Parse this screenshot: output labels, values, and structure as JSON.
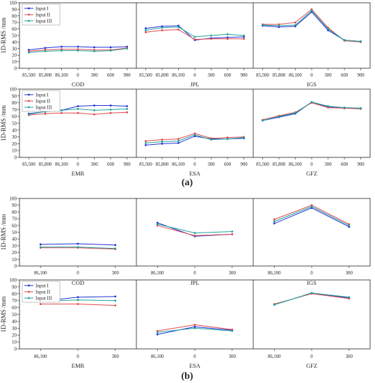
{
  "figure": {
    "label_a": "(a)",
    "label_b": "(b)"
  },
  "colors": {
    "input1": "#1f2fd6",
    "input2": "#e0474c",
    "input3": "#1fa39a",
    "axis": "#222222",
    "grid": "#bfbfbf"
  },
  "chart_data": [
    {
      "type": "line",
      "panel": "a",
      "ylabel": "1D-RMS /mm",
      "ylim": [
        0,
        100
      ],
      "yticks": [
        0,
        10,
        20,
        30,
        40,
        50,
        60,
        70,
        80,
        90,
        100
      ],
      "legend": [
        "Input I",
        "Input II",
        "Input III"
      ],
      "legend_position": "top-left",
      "x": [
        "85,500",
        "85,800",
        "86,100",
        "0",
        "300",
        "600",
        "900"
      ],
      "subplots": [
        {
          "label": "COD",
          "series": [
            {
              "name": "Input I",
              "values": [
                28,
                31,
                33,
                33,
                32,
                32,
                33
              ]
            },
            {
              "name": "Input II",
              "values": [
                26,
                28,
                29,
                29,
                28,
                28,
                31
              ]
            },
            {
              "name": "Input III",
              "values": [
                24,
                26,
                27,
                27,
                26,
                27,
                30
              ]
            }
          ]
        },
        {
          "label": "JPL",
          "series": [
            {
              "name": "Input I",
              "values": [
                61,
                64,
                65,
                43,
                46,
                47,
                48
              ]
            },
            {
              "name": "Input II",
              "values": [
                55,
                58,
                59,
                44,
                45,
                45,
                45
              ]
            },
            {
              "name": "Input III",
              "values": [
                58,
                62,
                63,
                48,
                50,
                52,
                50
              ]
            }
          ]
        },
        {
          "label": "IGS",
          "series": [
            {
              "name": "Input I",
              "values": [
                65,
                63,
                64,
                86,
                58,
                43,
                41
              ]
            },
            {
              "name": "Input II",
              "values": [
                67,
                67,
                70,
                90,
                62,
                42,
                40
              ]
            },
            {
              "name": "Input III",
              "values": [
                66,
                65,
                66,
                88,
                60,
                43,
                41
              ]
            }
          ]
        }
      ]
    },
    {
      "type": "line",
      "panel": "a",
      "ylabel": "1D-RMS /mm",
      "ylim": [
        0,
        100
      ],
      "yticks": [
        0,
        10,
        20,
        30,
        40,
        50,
        60,
        70,
        80,
        90,
        100
      ],
      "legend": [
        "Input I",
        "Input II",
        "Input III"
      ],
      "legend_position": "top-left",
      "x": [
        "85,500",
        "85,800",
        "86,100",
        "0",
        "300",
        "600",
        "900"
      ],
      "subplots": [
        {
          "label": "EMR",
          "series": [
            {
              "name": "Input I",
              "values": [
                64,
                67,
                69,
                75,
                76,
                76,
                75
              ]
            },
            {
              "name": "Input II",
              "values": [
                62,
                64,
                65,
                65,
                63,
                65,
                66
              ]
            },
            {
              "name": "Input III",
              "values": [
                63,
                67,
                69,
                71,
                69,
                70,
                71
              ]
            }
          ]
        },
        {
          "label": "ESA",
          "series": [
            {
              "name": "Input I",
              "values": [
                18,
                20,
                21,
                31,
                27,
                27,
                28
              ]
            },
            {
              "name": "Input II",
              "values": [
                24,
                26,
                27,
                35,
                28,
                29,
                30
              ]
            },
            {
              "name": "Input III",
              "values": [
                21,
                23,
                24,
                33,
                26,
                27,
                29
              ]
            }
          ]
        },
        {
          "label": "GFZ",
          "series": [
            {
              "name": "Input I",
              "values": [
                54,
                59,
                64,
                81,
                74,
                72,
                72
              ]
            },
            {
              "name": "Input II",
              "values": [
                55,
                61,
                66,
                80,
                73,
                72,
                71
              ]
            },
            {
              "name": "Input III",
              "values": [
                54,
                60,
                65,
                81,
                75,
                73,
                72
              ]
            }
          ]
        }
      ]
    },
    {
      "type": "line",
      "panel": "b",
      "ylabel": "1D-RMS /mm",
      "ylim": [
        0,
        100
      ],
      "yticks": [
        0,
        10,
        20,
        30,
        40,
        50,
        60,
        70,
        80,
        90,
        100
      ],
      "legend": [],
      "legend_position": "",
      "x": [
        "86,100",
        "0",
        "300"
      ],
      "subplots": [
        {
          "label": "COD",
          "series": [
            {
              "name": "Input I",
              "values": [
                32,
                33,
                31
              ]
            },
            {
              "name": "Input II",
              "values": [
                27,
                27,
                25
              ]
            },
            {
              "name": "Input III",
              "values": [
                28,
                28,
                26
              ]
            }
          ]
        },
        {
          "label": "JPL",
          "series": [
            {
              "name": "Input I",
              "values": [
                64,
                44,
                47
              ]
            },
            {
              "name": "Input II",
              "values": [
                60,
                45,
                47
              ]
            },
            {
              "name": "Input III",
              "values": [
                62,
                49,
                51
              ]
            }
          ]
        },
        {
          "label": "IGS",
          "series": [
            {
              "name": "Input I",
              "values": [
                63,
                86,
                58
              ]
            },
            {
              "name": "Input II",
              "values": [
                69,
                90,
                62
              ]
            },
            {
              "name": "Input III",
              "values": [
                66,
                88,
                60
              ]
            }
          ]
        }
      ]
    },
    {
      "type": "line",
      "panel": "b",
      "ylabel": "1D-RMS /mm",
      "ylim": [
        0,
        100
      ],
      "yticks": [
        0,
        10,
        20,
        30,
        40,
        50,
        60,
        70,
        80,
        90,
        100
      ],
      "legend": [
        "Input I",
        "Input II",
        "Input III"
      ],
      "legend_position": "top-left",
      "x": [
        "86,100",
        "0",
        "300"
      ],
      "subplots": [
        {
          "label": "EMR",
          "series": [
            {
              "name": "Input I",
              "values": [
                69,
                75,
                76
              ]
            },
            {
              "name": "Input II",
              "values": [
                65,
                65,
                63
              ]
            },
            {
              "name": "Input III",
              "values": [
                69,
                71,
                70
              ]
            }
          ]
        },
        {
          "label": "ESA",
          "series": [
            {
              "name": "Input I",
              "values": [
                21,
                32,
                27
              ]
            },
            {
              "name": "Input II",
              "values": [
                26,
                35,
                28
              ]
            },
            {
              "name": "Input III",
              "values": [
                24,
                30,
                26
              ]
            }
          ]
        },
        {
          "label": "GFZ",
          "series": [
            {
              "name": "Input I",
              "values": [
                64,
                81,
                74
              ]
            },
            {
              "name": "Input II",
              "values": [
                65,
                80,
                73
              ]
            },
            {
              "name": "Input III",
              "values": [
                64,
                81,
                75
              ]
            }
          ]
        }
      ]
    }
  ]
}
